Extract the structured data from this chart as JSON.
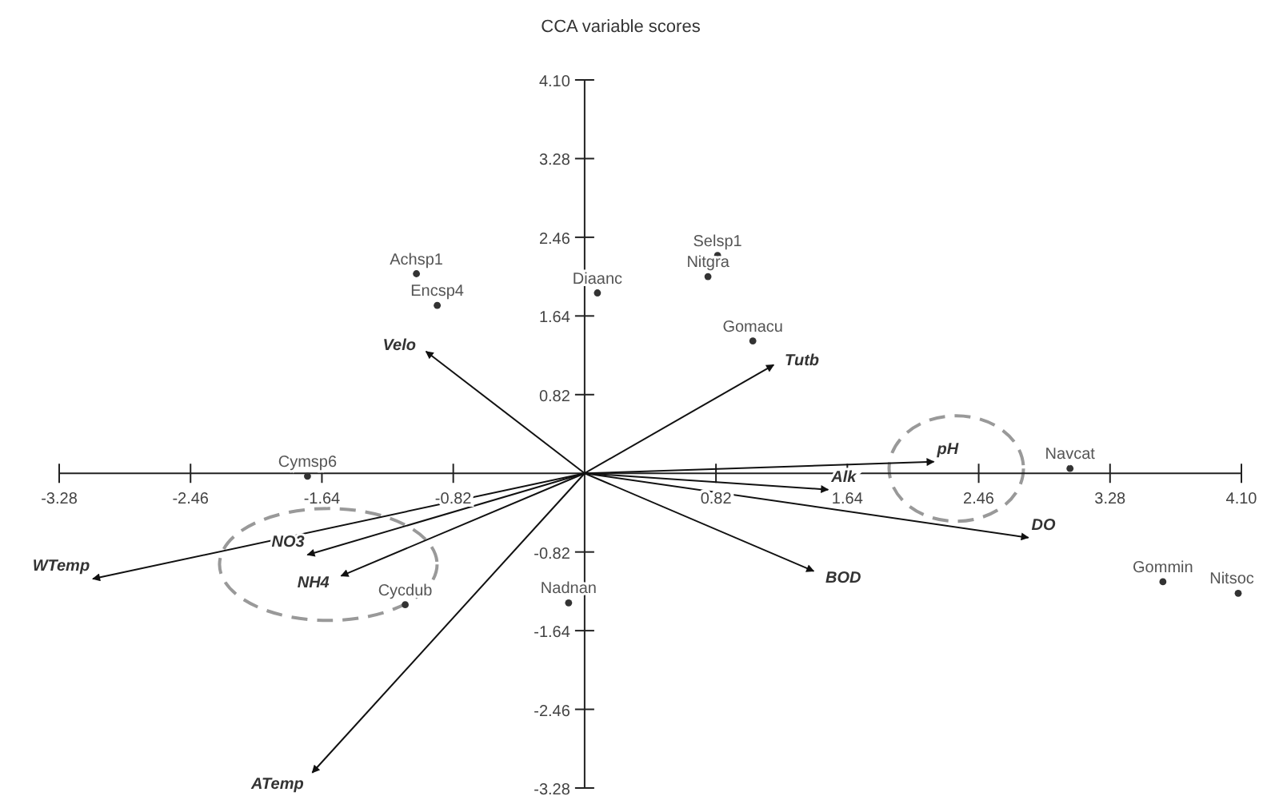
{
  "chart_data": {
    "type": "scatter",
    "title": "CCA variable scores",
    "xlim": [
      -3.28,
      4.1
    ],
    "ylim": [
      -3.28,
      4.1
    ],
    "xticks": [
      -3.28,
      -2.46,
      -1.64,
      -0.82,
      0.82,
      1.64,
      2.46,
      3.28,
      {
        "value": 4.1,
        "label": "4.10"
      }
    ],
    "yticks": [
      {
        "value": 4.1,
        "label": "4.10"
      },
      3.28,
      2.46,
      1.64,
      0.82,
      -0.82,
      -1.64,
      -2.46,
      -3.28
    ],
    "grid": false,
    "marker": "circle",
    "series": [
      {
        "color": "#333333",
        "x": [
          -1.05,
          -0.92,
          0.08,
          0.83,
          0.77,
          1.05,
          3.03,
          3.61,
          4.08,
          -1.73,
          -1.12,
          -0.1
        ],
        "values": [
          2.08,
          1.75,
          1.88,
          2.27,
          2.05,
          1.38,
          0.05,
          -1.13,
          -1.25,
          -0.03,
          -1.37,
          -1.35
        ]
      },
      {
        "type": "line",
        "marker": "none",
        "name": "WTemp",
        "color": "#111111",
        "x": [
          0,
          -3.07
        ],
        "values": [
          0,
          -1.1
        ]
      },
      {
        "type": "line",
        "marker": "none",
        "name": "NO3",
        "color": "#111111",
        "x": [
          0,
          -1.73
        ],
        "values": [
          0,
          -0.85
        ]
      },
      {
        "type": "line",
        "marker": "none",
        "name": "NH4",
        "color": "#111111",
        "x": [
          0,
          -1.52
        ],
        "values": [
          0,
          -1.07
        ]
      },
      {
        "type": "line",
        "marker": "none",
        "name": "ATemp",
        "color": "#111111",
        "x": [
          0,
          -1.7
        ],
        "values": [
          0,
          -3.12
        ]
      },
      {
        "type": "line",
        "marker": "none",
        "name": "Velo",
        "color": "#111111",
        "x": [
          0,
          -0.99
        ],
        "values": [
          0,
          1.27
        ]
      },
      {
        "type": "line",
        "marker": "none",
        "name": "Tutb",
        "color": "#111111",
        "x": [
          0,
          1.18
        ],
        "values": [
          0,
          1.13
        ]
      },
      {
        "type": "line",
        "marker": "none",
        "name": "pH",
        "color": "#111111",
        "x": [
          0,
          2.18
        ],
        "values": [
          0,
          0.12
        ]
      },
      {
        "type": "line",
        "marker": "none",
        "name": "Alk",
        "color": "#111111",
        "x": [
          0,
          1.52
        ],
        "values": [
          0,
          -0.17
        ]
      },
      {
        "type": "line",
        "marker": "none",
        "name": "DO",
        "color": "#111111",
        "x": [
          0,
          2.77
        ],
        "values": [
          0,
          -0.67
        ]
      },
      {
        "type": "line",
        "marker": "none",
        "name": "BOD",
        "color": "#111111",
        "x": [
          0,
          1.43
        ],
        "values": [
          0,
          -1.02
        ]
      }
    ],
    "annotations": [
      {
        "text": "Achsp1",
        "x": -1.05,
        "y": 2.08
      },
      {
        "text": "Encsp4",
        "x": -0.92,
        "y": 1.75
      },
      {
        "text": "Diaanc",
        "x": 0.08,
        "y": 1.88
      },
      {
        "text": "Selsp1",
        "x": 0.83,
        "y": 2.27
      },
      {
        "text": "Nitgra",
        "x": 0.77,
        "y": 2.05
      },
      {
        "text": "Gomacu",
        "x": 1.05,
        "y": 1.38
      },
      {
        "text": "Navcat",
        "x": 3.03,
        "y": 0.05
      },
      {
        "text": "Gommin",
        "x": 3.61,
        "y": -1.13
      },
      {
        "text": "Nitsoc",
        "x": 4.08,
        "y": -1.25
      },
      {
        "text": "Cymsp6",
        "x": -1.73,
        "y": -0.03
      },
      {
        "text": "Cycdub",
        "x": -1.12,
        "y": -1.37
      },
      {
        "text": "Nadnan",
        "x": -0.1,
        "y": -1.35
      }
    ]
  }
}
